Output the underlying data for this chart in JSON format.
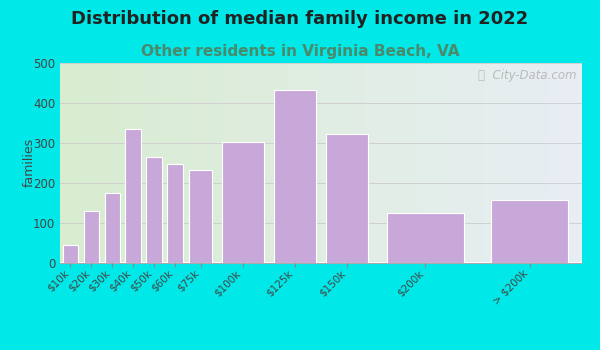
{
  "title": "Distribution of median family income in 2022",
  "subtitle": "Other residents in Virginia Beach, VA",
  "categories": [
    "$10k",
    "$20k",
    "$30k",
    "$40k",
    "$50k",
    "$60k",
    "$75k",
    "$100k",
    "$125k",
    "$150k",
    "$200k",
    "> $200k"
  ],
  "values": [
    45,
    130,
    175,
    335,
    265,
    248,
    232,
    303,
    432,
    322,
    123,
    157
  ],
  "bar_color": "#c8a8d8",
  "bar_edge_color": "#ffffff",
  "ylabel": "families",
  "ylim": [
    0,
    500
  ],
  "yticks": [
    0,
    100,
    200,
    300,
    400,
    500
  ],
  "title_fontsize": 13,
  "subtitle_fontsize": 11,
  "subtitle_color": "#4a8a6a",
  "title_color": "#222222",
  "background_outer": "#00e8e8",
  "background_plot_left": "#d8ecd0",
  "background_plot_right": "#e8eef4",
  "watermark": "ⓘ  City-Data.com",
  "bar_centers": [
    5,
    15,
    25,
    35,
    45,
    55,
    67.5,
    87.5,
    112.5,
    137.5,
    175,
    225
  ],
  "bar_widths": [
    8,
    8,
    8,
    8,
    8,
    8,
    12,
    22,
    22,
    22,
    40,
    40
  ]
}
